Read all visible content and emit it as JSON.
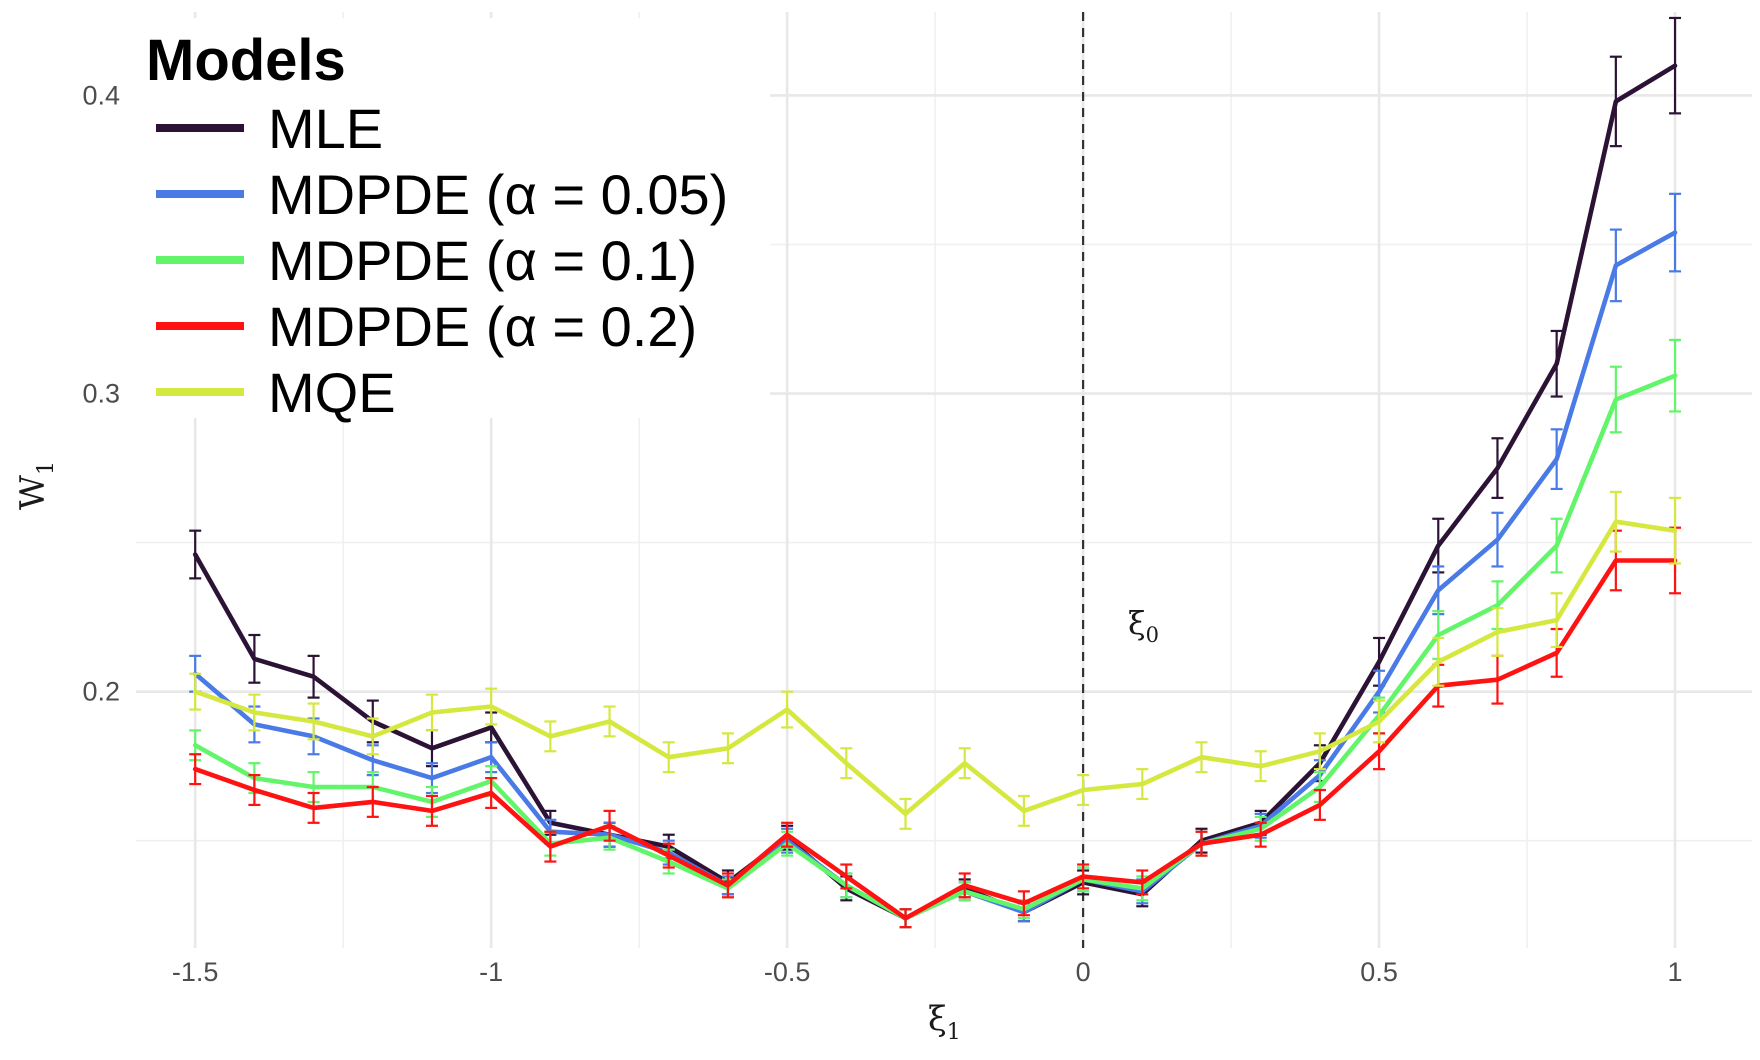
{
  "chart_data": {
    "type": "line",
    "xlabel": "ξ",
    "xlabel_sub": "1",
    "ylabel": "W",
    "ylabel_sub": "1",
    "xlim": [
      -1.6,
      1.13
    ],
    "ylim": [
      0.114,
      0.428
    ],
    "x_ticks": [
      -1.5,
      -1,
      -0.5,
      0,
      0.5,
      1
    ],
    "x_tick_labels": [
      "-1.5",
      "-1",
      "-0.5",
      "0",
      "0.5",
      "1"
    ],
    "y_ticks": [
      0.2,
      0.3,
      0.4
    ],
    "y_tick_labels": [
      "0.2",
      "0.3",
      "0.4"
    ],
    "grid": true,
    "reference_line": {
      "x": 0,
      "style": "dashed",
      "label": "ξ",
      "label_sub": "0"
    },
    "legend": {
      "title": "Models",
      "position": "top-left"
    },
    "x": [
      -1.5,
      -1.4,
      -1.3,
      -1.2,
      -1.1,
      -1.0,
      -0.9,
      -0.8,
      -0.7,
      -0.6,
      -0.5,
      -0.4,
      -0.3,
      -0.2,
      -0.1,
      0.0,
      0.1,
      0.2,
      0.3,
      0.4,
      0.5,
      0.6,
      0.7,
      0.8,
      0.9,
      1.0
    ],
    "series": [
      {
        "name": "MLE",
        "color": "#2c1335",
        "values": [
          0.246,
          0.211,
          0.205,
          0.19,
          0.181,
          0.188,
          0.156,
          0.152,
          0.148,
          0.136,
          0.151,
          0.134,
          0.124,
          0.134,
          0.126,
          0.136,
          0.132,
          0.15,
          0.156,
          0.176,
          0.21,
          0.249,
          0.275,
          0.31,
          0.398,
          0.41
        ],
        "err": [
          0.008,
          0.008,
          0.007,
          0.007,
          0.006,
          0.005,
          0.004,
          0.004,
          0.004,
          0.004,
          0.004,
          0.004,
          0.003,
          0.003,
          0.003,
          0.004,
          0.004,
          0.004,
          0.004,
          0.006,
          0.008,
          0.009,
          0.01,
          0.011,
          0.015,
          0.016
        ]
      },
      {
        "name": "MDPDE (α = 0.05)",
        "color": "#4a7ae6",
        "values": [
          0.206,
          0.189,
          0.185,
          0.177,
          0.171,
          0.178,
          0.153,
          0.152,
          0.146,
          0.135,
          0.15,
          0.135,
          0.124,
          0.133,
          0.126,
          0.137,
          0.133,
          0.149,
          0.155,
          0.172,
          0.2,
          0.234,
          0.251,
          0.278,
          0.343,
          0.354
        ],
        "err": [
          0.006,
          0.006,
          0.006,
          0.005,
          0.005,
          0.005,
          0.004,
          0.004,
          0.004,
          0.003,
          0.004,
          0.004,
          0.003,
          0.003,
          0.003,
          0.004,
          0.004,
          0.004,
          0.004,
          0.005,
          0.007,
          0.008,
          0.009,
          0.01,
          0.012,
          0.013
        ]
      },
      {
        "name": "MDPDE (α = 0.1)",
        "color": "#62f56a",
        "values": [
          0.182,
          0.171,
          0.168,
          0.168,
          0.163,
          0.17,
          0.149,
          0.151,
          0.143,
          0.134,
          0.149,
          0.135,
          0.124,
          0.133,
          0.127,
          0.137,
          0.134,
          0.149,
          0.154,
          0.168,
          0.192,
          0.219,
          0.229,
          0.249,
          0.298,
          0.306
        ],
        "err": [
          0.005,
          0.005,
          0.005,
          0.005,
          0.005,
          0.005,
          0.004,
          0.004,
          0.004,
          0.003,
          0.004,
          0.004,
          0.003,
          0.003,
          0.003,
          0.004,
          0.004,
          0.004,
          0.004,
          0.005,
          0.006,
          0.008,
          0.008,
          0.009,
          0.011,
          0.012
        ]
      },
      {
        "name": "MDPDE (α = 0.2)",
        "color": "#ff1212",
        "values": [
          0.174,
          0.167,
          0.161,
          0.163,
          0.16,
          0.166,
          0.148,
          0.155,
          0.145,
          0.135,
          0.152,
          0.138,
          0.124,
          0.135,
          0.129,
          0.138,
          0.136,
          0.149,
          0.152,
          0.162,
          0.18,
          0.202,
          0.204,
          0.213,
          0.244,
          0.244
        ],
        "err": [
          0.005,
          0.005,
          0.005,
          0.005,
          0.005,
          0.005,
          0.005,
          0.005,
          0.004,
          0.004,
          0.004,
          0.004,
          0.003,
          0.004,
          0.004,
          0.004,
          0.004,
          0.004,
          0.004,
          0.005,
          0.006,
          0.007,
          0.008,
          0.008,
          0.01,
          0.011
        ]
      },
      {
        "name": "MQE",
        "color": "#d5e83f",
        "values": [
          0.2,
          0.193,
          0.19,
          0.185,
          0.193,
          0.195,
          0.185,
          0.19,
          0.178,
          0.181,
          0.194,
          0.176,
          0.159,
          0.176,
          0.16,
          0.167,
          0.169,
          0.178,
          0.175,
          0.18,
          0.19,
          0.21,
          0.22,
          0.224,
          0.257,
          0.254
        ],
        "err": [
          0.006,
          0.006,
          0.006,
          0.006,
          0.006,
          0.006,
          0.005,
          0.005,
          0.005,
          0.005,
          0.006,
          0.005,
          0.005,
          0.005,
          0.005,
          0.005,
          0.005,
          0.005,
          0.005,
          0.006,
          0.007,
          0.008,
          0.008,
          0.009,
          0.01,
          0.011
        ]
      }
    ]
  }
}
